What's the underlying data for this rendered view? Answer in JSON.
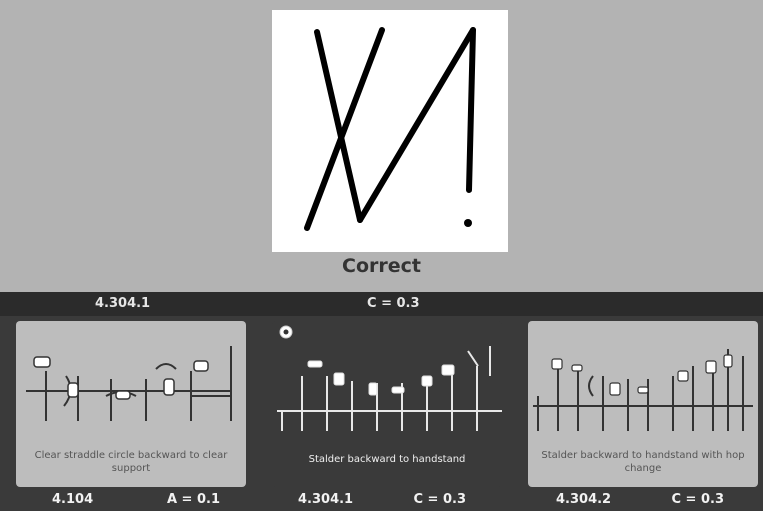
{
  "result": {
    "label": "Correct"
  },
  "info_bar": {
    "code": "4.304.1",
    "value": "C = 0.3"
  },
  "options": [
    {
      "caption": "Clear straddle circle backward to clear support",
      "code": "4.104",
      "value": "A = 0.1",
      "style": "light"
    },
    {
      "caption": "Stalder backward to handstand",
      "code": "4.304.1",
      "value": "C = 0.3",
      "style": "dark"
    },
    {
      "caption": "Stalder backward to handstand with hop change",
      "code": "4.304.2",
      "value": "C = 0.3",
      "style": "light"
    }
  ],
  "colors": {
    "background": "#b3b3b3",
    "bar": "#2b2b2b",
    "card_light": "#bdbdbd",
    "panel_dark": "#3a3a3a"
  },
  "icons": {
    "option2_badge": "play-circle-icon"
  }
}
